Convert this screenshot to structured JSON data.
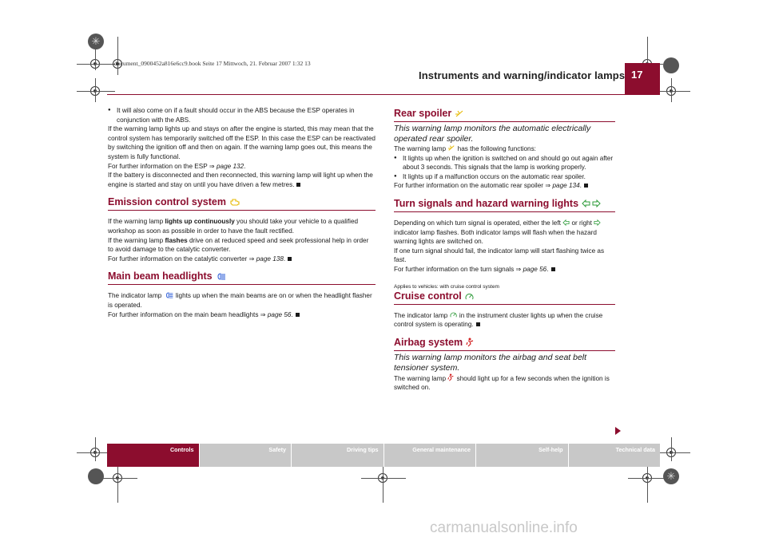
{
  "header": {
    "file_info": "document_0900452a816e6cc9.book  Seite 17  Mittwoch, 21. Februar 2007  1:32 13",
    "running_head": "Instruments and warning/indicator lamps",
    "page_number": "17"
  },
  "left_column": {
    "intro_bullet": "It will also come on if a fault should occur in the ABS because the ESP operates in conjunction with the ABS.",
    "intro_p1": "If the warning lamp lights up and stays on after the engine is started, this may mean that the control system has temporarily switched off the ESP. In this case the ESP can be reactivated by switching the ignition off and then on again. If the warning lamp goes out, this means the system is fully functional.",
    "intro_p2_text": "For further information on the ESP ",
    "intro_p2_ref": "page 132",
    "intro_p2_end": ".",
    "intro_p3": "If the battery is disconnected and then reconnected, this warning lamp will light up when the engine is started and stay on until you have driven a few metres.",
    "emission": {
      "title": "Emission control system",
      "p1_a": "If the warning lamp ",
      "p1_bold": "lights up continuously",
      "p1_b": " you should take your vehicle to a qualified workshop as soon as possible in order to have the fault rectified.",
      "p2_a": "If the warning lamp ",
      "p2_bold": "flashes",
      "p2_b": " drive on at reduced speed and seek professional help in order to avoid damage to the catalytic converter.",
      "p3_text": "For further information on the catalytic converter ",
      "p3_ref": "page 138",
      "p3_end": "."
    },
    "main_beam": {
      "title": "Main beam headlights",
      "p1_a": "The indicator lamp ",
      "p1_b": " lights up when the main beams are on or when the headlight flasher is operated.",
      "p2_text": "For further information on the main beam headlights ",
      "p2_ref": "page 56",
      "p2_end": "."
    }
  },
  "right_column": {
    "rear_spoiler": {
      "title": "Rear spoiler",
      "subtitle": "This warning lamp monitors the automatic electrically operated rear spoiler.",
      "p1_a": "The warning lamp ",
      "p1_b": " has the following functions:",
      "bullet1": "It lights up when the ignition is switched on and should go out again after about 3 seconds. This signals that the lamp is working properly.",
      "bullet2": "It lights up if a malfunction occurs on the automatic rear spoiler.",
      "p2_text": "For further information on the automatic rear spoiler ",
      "p2_ref": "page 134",
      "p2_end": "."
    },
    "turn_signals": {
      "title": "Turn signals and hazard warning lights",
      "p1_a": "Depending on which turn signal is operated, either the left ",
      "p1_b": " or right ",
      "p1_c": " indicator lamp flashes. Both indicator lamps will flash when the hazard warning lights are switched on.",
      "p2": "If one turn signal should fail, the indicator lamp will start flashing twice as fast.",
      "p3_text": "For further information on the turn signals ",
      "p3_ref": "page 56",
      "p3_end": "."
    },
    "cruise": {
      "applies": "Applies to vehicles: with cruise control system",
      "title": "Cruise control",
      "p1_a": "The indicator lamp ",
      "p1_b": " in the instrument cluster lights up when the cruise control system is operating."
    },
    "airbag": {
      "title": "Airbag system",
      "subtitle": "This warning lamp monitors the airbag and seat belt tensioner system.",
      "p1_a": "The warning lamp ",
      "p1_b": " should light up for a few seconds when the ignition is switched on."
    }
  },
  "nav_tabs": [
    {
      "label": "Controls",
      "active": true
    },
    {
      "label": "Safety",
      "active": false
    },
    {
      "label": "Driving tips",
      "active": false
    },
    {
      "label": "General maintenance",
      "active": false
    },
    {
      "label": "Self-help",
      "active": false
    },
    {
      "label": "Technical data",
      "active": false
    }
  ],
  "watermark": "carmanualsonline.info",
  "icons": {
    "emission": "engine-warning-icon",
    "main_beam": "main-beam-icon",
    "rear_spoiler": "rear-spoiler-icon",
    "turn_left": "turn-left-arrow-icon",
    "turn_right": "turn-right-arrow-icon",
    "cruise": "speedometer-icon",
    "airbag": "airbag-person-icon",
    "cross_ref": "cross-reference-arrow-icon"
  },
  "colors": {
    "accent": "#8c0d2e",
    "lamp_yellow": "#e6b800",
    "lamp_blue": "#2a5bd7",
    "lamp_green": "#2e9b3a",
    "lamp_red": "#d21f1f",
    "tab_grey": "#c8c8c8"
  }
}
